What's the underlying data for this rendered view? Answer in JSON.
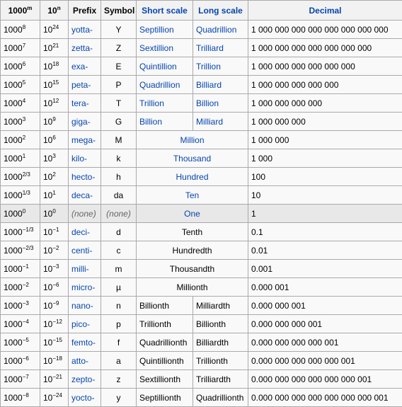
{
  "headers": {
    "power1000": "1000",
    "power1000_sup": "m",
    "power10": "10",
    "power10_sup": "n",
    "prefix": "Prefix",
    "symbol": "Symbol",
    "short_scale": "Short scale",
    "long_scale": "Long scale",
    "decimal": "Decimal"
  },
  "rows": [
    {
      "p1000": "1000",
      "e1000": "8",
      "p10": "10",
      "e10": "24",
      "prefix": "yotta-",
      "symbol": "Y",
      "short": "Septillion",
      "long": "Quadrillion",
      "decimal": "1 000 000 000 000 000 000 000 000"
    },
    {
      "p1000": "1000",
      "e1000": "7",
      "p10": "10",
      "e10": "21",
      "prefix": "zetta-",
      "symbol": "Z",
      "short": "Sextillion",
      "long": "Trilliard",
      "decimal": "1 000 000 000 000 000 000 000"
    },
    {
      "p1000": "1000",
      "e1000": "6",
      "p10": "10",
      "e10": "18",
      "prefix": "exa-",
      "symbol": "E",
      "short": "Quintillion",
      "long": "Trillion",
      "decimal": "1 000 000 000 000 000 000"
    },
    {
      "p1000": "1000",
      "e1000": "5",
      "p10": "10",
      "e10": "15",
      "prefix": "peta-",
      "symbol": "P",
      "short": "Quadrillion",
      "long": "Billiard",
      "decimal": "1 000 000 000 000 000"
    },
    {
      "p1000": "1000",
      "e1000": "4",
      "p10": "10",
      "e10": "12",
      "prefix": "tera-",
      "symbol": "T",
      "short": "Trillion",
      "long": "Billion",
      "decimal": "1 000 000 000 000"
    },
    {
      "p1000": "1000",
      "e1000": "3",
      "p10": "10",
      "e10": "9",
      "prefix": "giga-",
      "symbol": "G",
      "short": "Billion",
      "long": "Milliard",
      "decimal": "1 000 000 000"
    },
    {
      "p1000": "1000",
      "e1000": "2",
      "p10": "10",
      "e10": "6",
      "prefix": "mega-",
      "symbol": "M",
      "scale": "Million",
      "decimal": "1 000 000"
    },
    {
      "p1000": "1000",
      "e1000": "1",
      "p10": "10",
      "e10": "3",
      "prefix": "kilo-",
      "symbol": "k",
      "scale": "Thousand",
      "decimal": "1 000"
    },
    {
      "p1000": "1000",
      "e1000": "2/3",
      "p10": "10",
      "e10": "2",
      "prefix": "hecto-",
      "symbol": "h",
      "scale": "Hundred",
      "decimal": "100"
    },
    {
      "p1000": "1000",
      "e1000": "1/3",
      "p10": "10",
      "e10": "1",
      "prefix": "deca-",
      "symbol": "da",
      "scale": "Ten",
      "decimal": "10"
    },
    {
      "p1000": "1000",
      "e1000": "0",
      "p10": "10",
      "e10": "0",
      "prefix": "(none)",
      "symbol": "(none)",
      "scale": "One",
      "decimal": "1"
    },
    {
      "p1000": "1000",
      "e1000": "−1/3",
      "p10": "10",
      "e10": "−1",
      "prefix": "deci-",
      "symbol": "d",
      "scale": "Tenth",
      "decimal": "0.1"
    },
    {
      "p1000": "1000",
      "e1000": "−2/3",
      "p10": "10",
      "e10": "−2",
      "prefix": "centi-",
      "symbol": "c",
      "scale": "Hundredth",
      "decimal": "0.01"
    },
    {
      "p1000": "1000",
      "e1000": "−1",
      "p10": "10",
      "e10": "−3",
      "prefix": "milli-",
      "symbol": "m",
      "scale": "Thousandth",
      "decimal": "0.001"
    },
    {
      "p1000": "1000",
      "e1000": "−2",
      "p10": "10",
      "e10": "−6",
      "prefix": "micro-",
      "symbol": "µ",
      "scale": "Millionth",
      "decimal": "0.000 001"
    },
    {
      "p1000": "1000",
      "e1000": "−3",
      "p10": "10",
      "e10": "−9",
      "prefix": "nano-",
      "symbol": "n",
      "short": "Billionth",
      "long": "Milliardth",
      "decimal": "0.000 000 001"
    },
    {
      "p1000": "1000",
      "e1000": "−4",
      "p10": "10",
      "e10": "−12",
      "prefix": "pico-",
      "symbol": "p",
      "short": "Trillionth",
      "long": "Billionth",
      "decimal": "0.000 000 000 001"
    },
    {
      "p1000": "1000",
      "e1000": "−5",
      "p10": "10",
      "e10": "−15",
      "prefix": "femto-",
      "symbol": "f",
      "short": "Quadrillionth",
      "long": "Billiardth",
      "decimal": "0.000 000 000 000 001"
    },
    {
      "p1000": "1000",
      "e1000": "−6",
      "p10": "10",
      "e10": "−18",
      "prefix": "atto-",
      "symbol": "a",
      "short": "Quintillionth",
      "long": "Trillionth",
      "decimal": "0.000 000 000 000 000 001"
    },
    {
      "p1000": "1000",
      "e1000": "−7",
      "p10": "10",
      "e10": "−21",
      "prefix": "zepto-",
      "symbol": "z",
      "short": "Sextillionth",
      "long": "Trilliardth",
      "decimal": "0.000 000 000 000 000 000 001"
    },
    {
      "p1000": "1000",
      "e1000": "−8",
      "p10": "10",
      "e10": "−24",
      "prefix": "yocto-",
      "symbol": "y",
      "short": "Septillionth",
      "long": "Quadrillionth",
      "decimal": "0.000 000 000 000 000 000 000 001"
    }
  ],
  "colors": {
    "link": "#0645ad",
    "border": "#aaaaaa",
    "header_bg": "#f2f2f2",
    "cell_bg": "#f9f9f9",
    "unit_row_bg": "#e8e8e8"
  }
}
